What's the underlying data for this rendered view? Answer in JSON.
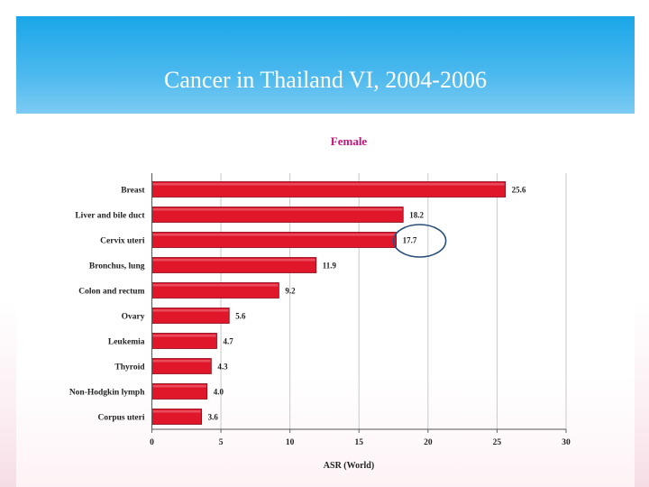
{
  "slide": {
    "title": "Cancer in Thailand VI, 2004-2006"
  },
  "chart_data": {
    "type": "bar",
    "orientation": "horizontal",
    "title": "Female",
    "xlabel": "ASR (World)",
    "ylabel": "",
    "categories": [
      "Breast",
      "Liver and bile duct",
      "Cervix uteri",
      "Bronchus, lung",
      "Colon and rectum",
      "Ovary",
      "Leukemia",
      "Thyroid",
      "Non-Hodgkin lymph",
      "Corpus uteri"
    ],
    "values": [
      25.6,
      18.2,
      17.7,
      11.9,
      9.2,
      5.6,
      4.7,
      4.3,
      4.0,
      3.6
    ],
    "value_labels": [
      "25.6",
      "18.2",
      "17.7",
      "11.9",
      "9.2",
      "5.6",
      "4.7",
      "4.3",
      "4.0",
      "3.6"
    ],
    "xticks": [
      "0",
      "5",
      "10",
      "15",
      "20",
      "25",
      "30"
    ],
    "xlim": [
      0,
      30
    ],
    "grid": true,
    "highlighted_category": "Cervix uteri",
    "colors": {
      "bar": "#e0162b",
      "bar_edge": "#8a0a16",
      "title": "#c8177a",
      "highlight_ring": "#2a4f7a"
    }
  }
}
